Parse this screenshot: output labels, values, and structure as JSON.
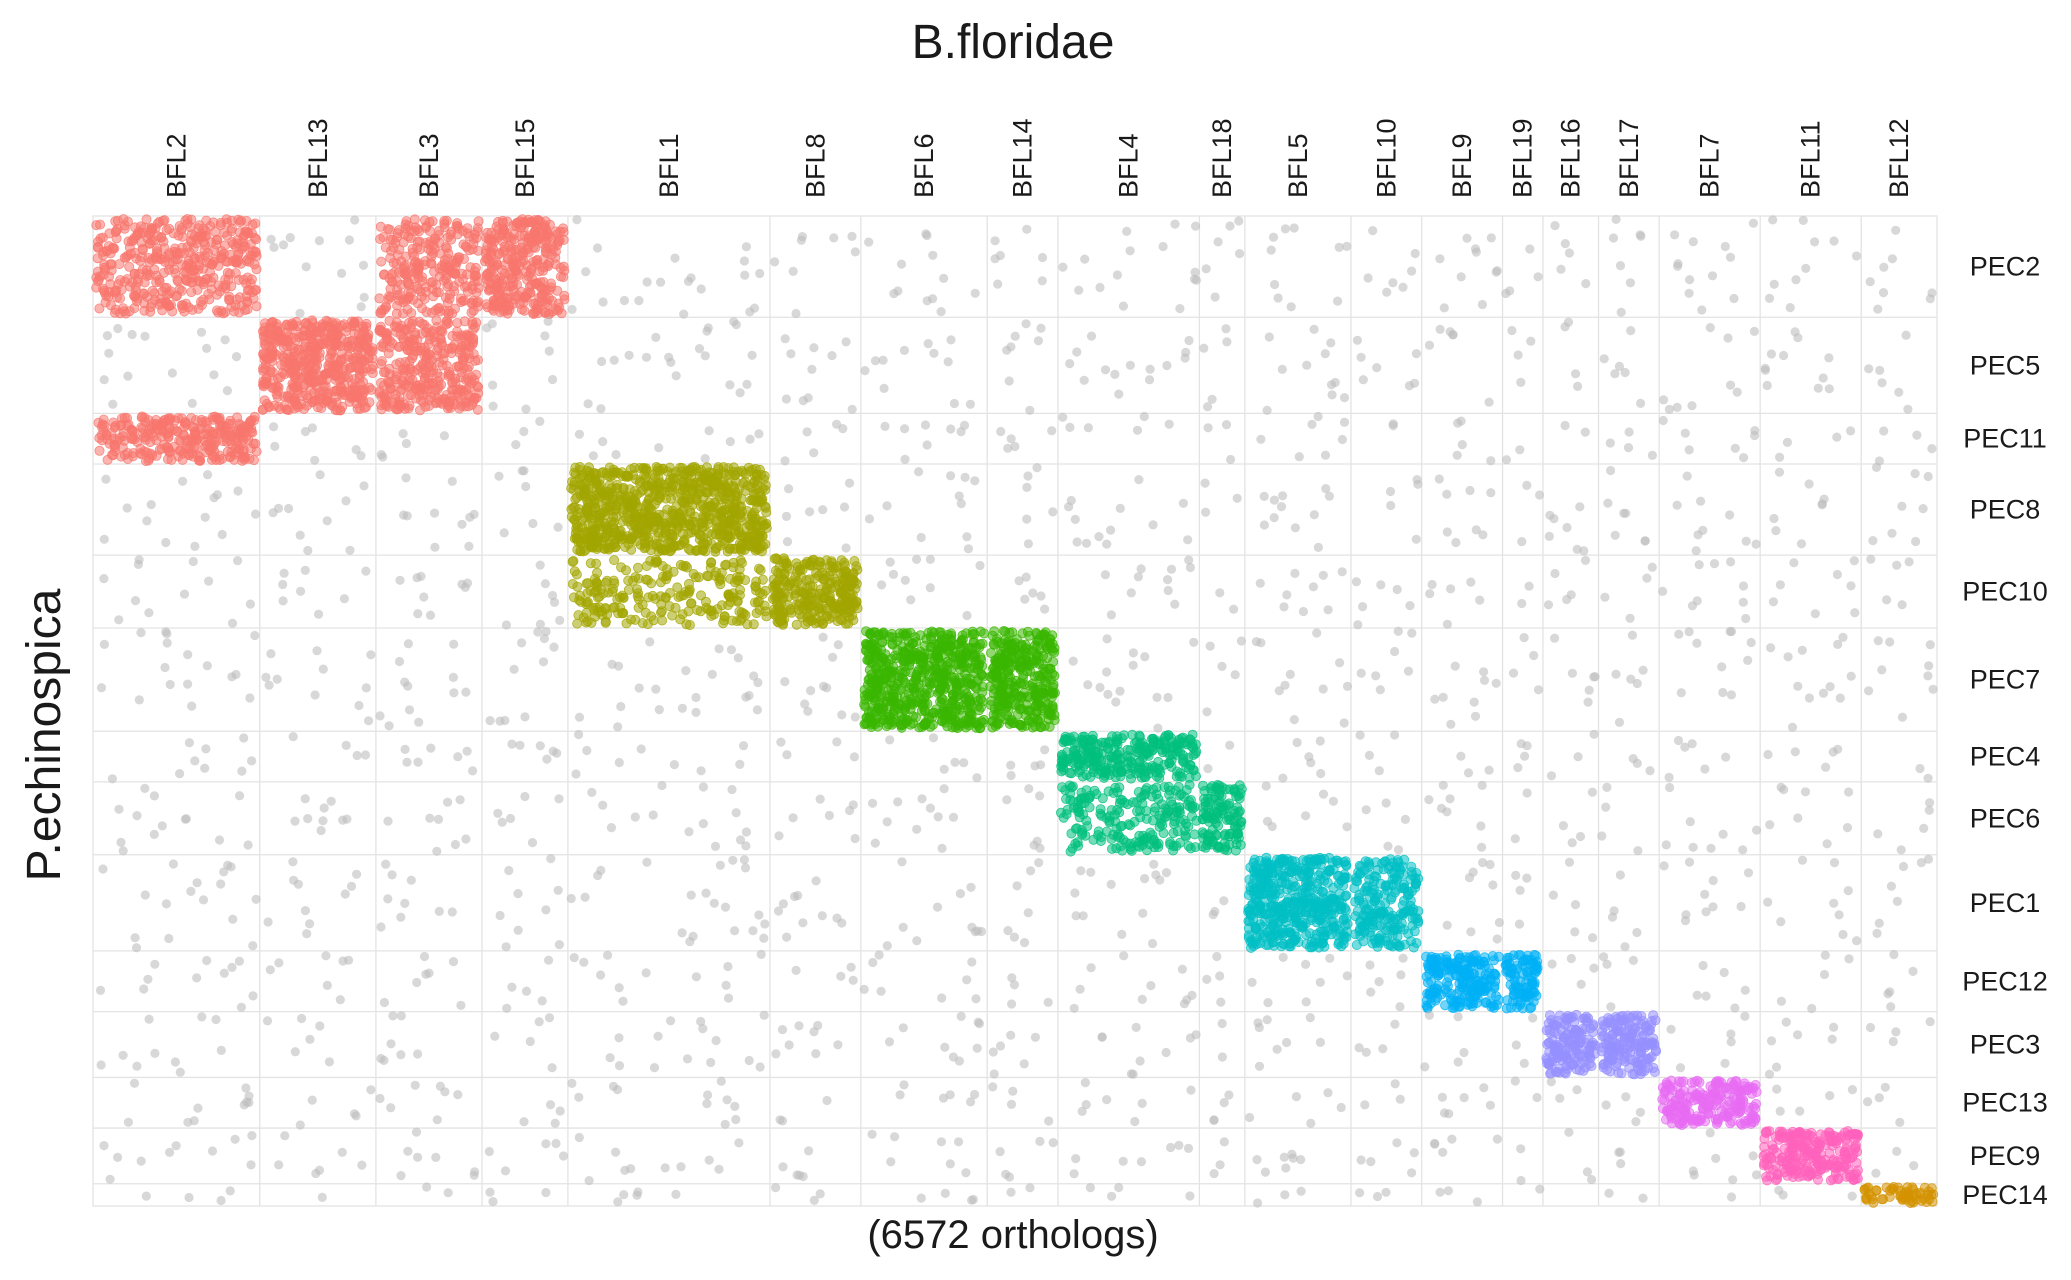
{
  "chart_data": {
    "type": "scatter",
    "title": "B.floridae",
    "xlabel": "(6572 orthologs)",
    "ylabel": "P.echinospica",
    "x_chromosomes": [
      "BFL2",
      "BFL13",
      "BFL3",
      "BFL15",
      "BFL1",
      "BFL8",
      "BFL6",
      "BFL14",
      "BFL4",
      "BFL18",
      "BFL5",
      "BFL10",
      "BFL9",
      "BFL19",
      "BFL16",
      "BFL17",
      "BFL7",
      "BFL11",
      "BFL12"
    ],
    "x_gene_counts": [
      165,
      115,
      105,
      85,
      200,
      90,
      125,
      70,
      140,
      45,
      105,
      70,
      80,
      40,
      55,
      60,
      100,
      100,
      75
    ],
    "y_chromosomes": [
      "PEC2",
      "PEC5",
      "PEC11",
      "PEC8",
      "PEC10",
      "PEC7",
      "PEC4",
      "PEC6",
      "PEC1",
      "PEC12",
      "PEC3",
      "PEC13",
      "PEC9",
      "PEC14"
    ],
    "y_gene_counts": [
      100,
      95,
      50,
      90,
      72,
      102,
      50,
      72,
      95,
      60,
      65,
      50,
      55,
      22
    ],
    "blocks": [
      {
        "x": "BFL2",
        "y": "PEC2",
        "color": "#F8766D",
        "density": 0.55
      },
      {
        "x": "BFL3",
        "y": "PEC2",
        "color": "#F8766D",
        "density": 0.55
      },
      {
        "x": "BFL15",
        "y": "PEC2",
        "color": "#F8766D",
        "density": 0.85
      },
      {
        "x": "BFL13",
        "y": "PEC5",
        "color": "#F8766D",
        "density": 1.0
      },
      {
        "x": "BFL3",
        "y": "PEC5",
        "color": "#F8766D",
        "density": 0.75
      },
      {
        "x": "BFL2",
        "y": "PEC11",
        "color": "#F8766D",
        "density": 0.8
      },
      {
        "x": "BFL1",
        "y": "PEC8",
        "color": "#A3A500",
        "density": 1.0
      },
      {
        "x": "BFL1",
        "y": "PEC10",
        "color": "#A3A500",
        "density": 0.35
      },
      {
        "x": "BFL8",
        "y": "PEC10",
        "color": "#A3A500",
        "density": 1.0
      },
      {
        "x": "BFL6",
        "y": "PEC7",
        "color": "#39B600",
        "density": 1.0
      },
      {
        "x": "BFL14",
        "y": "PEC7",
        "color": "#39B600",
        "density": 1.0
      },
      {
        "x": "BFL4",
        "y": "PEC4",
        "color": "#00BF7D",
        "density": 0.9
      },
      {
        "x": "BFL4",
        "y": "PEC6",
        "color": "#00BF7D",
        "density": 0.45
      },
      {
        "x": "BFL18",
        "y": "PEC6",
        "color": "#00BF7D",
        "density": 0.9
      },
      {
        "x": "BFL5",
        "y": "PEC1",
        "color": "#00BFC4",
        "density": 1.0
      },
      {
        "x": "BFL10",
        "y": "PEC1",
        "color": "#00BFC4",
        "density": 0.7
      },
      {
        "x": "BFL9",
        "y": "PEC12",
        "color": "#00B0F6",
        "density": 1.0
      },
      {
        "x": "BFL19",
        "y": "PEC12",
        "color": "#00B0F6",
        "density": 1.0
      },
      {
        "x": "BFL16",
        "y": "PEC3",
        "color": "#9590FF",
        "density": 1.0
      },
      {
        "x": "BFL17",
        "y": "PEC3",
        "color": "#9590FF",
        "density": 1.0
      },
      {
        "x": "BFL7",
        "y": "PEC13",
        "color": "#E76BF3",
        "density": 1.0
      },
      {
        "x": "BFL11",
        "y": "PEC9",
        "color": "#FF62BC",
        "density": 1.0
      },
      {
        "x": "BFL12",
        "y": "PEC14",
        "color": "#D39200",
        "density": 1.0
      }
    ],
    "background_color": "#BEBEBE",
    "grid": true,
    "legend": "none"
  }
}
